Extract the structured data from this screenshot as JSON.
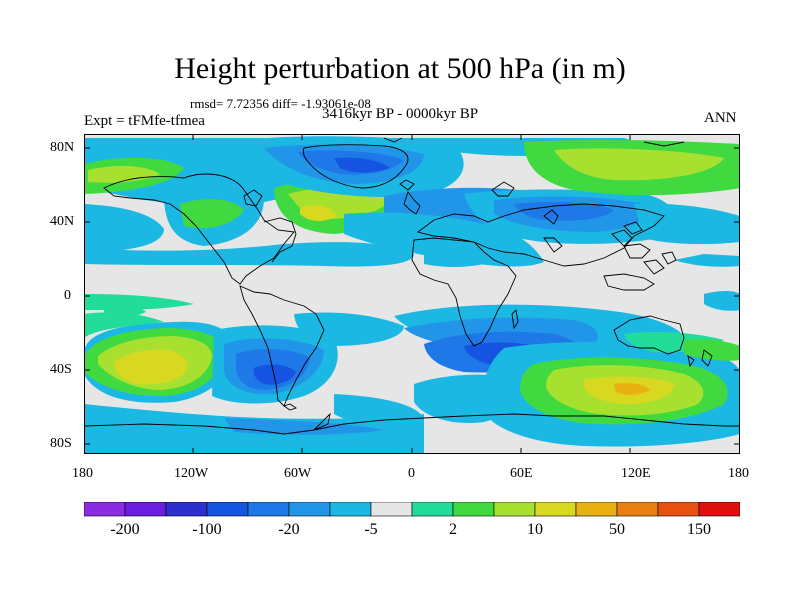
{
  "title": "Height perturbation at 500 hPa (in m)",
  "stats": "rmsd= 7.72356 diff= -1.93061e-08",
  "experiment": "Expt = tFMfe-tfmea",
  "period": "3416kyr BP - 0000kyr BP",
  "season": "ANN",
  "lat_ticks": [
    "80N",
    "40N",
    "0",
    "40S",
    "80S"
  ],
  "lon_ticks": [
    "180",
    "120W",
    "60W",
    "0",
    "60E",
    "120E",
    "180"
  ],
  "colorbar": {
    "colors": [
      "#8b2be2",
      "#6a1fe0",
      "#2f2fcf",
      "#1454e0",
      "#1e78e8",
      "#2196e8",
      "#1cb8e4",
      "#e6e6e6",
      "#22dd9a",
      "#40d940",
      "#a8e030",
      "#d8d820",
      "#e8b010",
      "#e88010",
      "#e85010",
      "#e01010"
    ],
    "labels": [
      "-200",
      "-100",
      "-20",
      "-5",
      "2",
      "10",
      "50",
      "150"
    ]
  }
}
